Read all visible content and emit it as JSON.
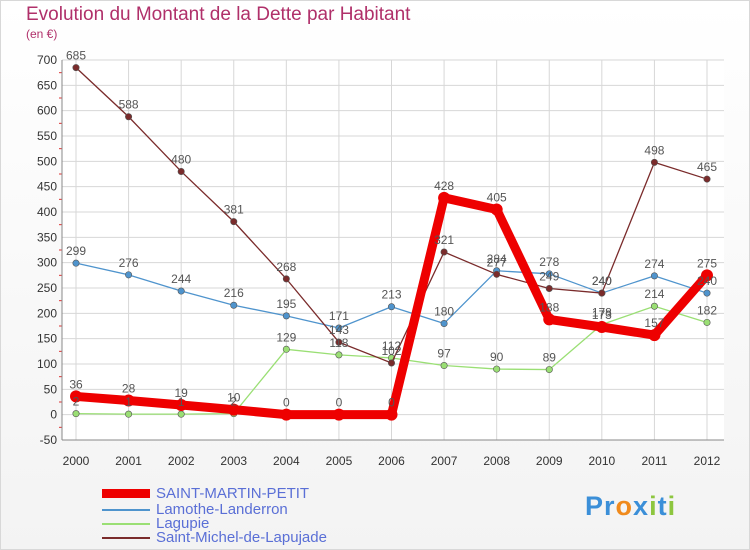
{
  "title": "Evolution du Montant de la Dette par Habitant",
  "subtitle": "(en €)",
  "logo": {
    "letters": [
      "P",
      "r",
      "o",
      "x",
      "i",
      "t",
      "i"
    ],
    "colors": [
      "#3b8fd8",
      "#3b8fd8",
      "#f08a1c",
      "#3b8fd8",
      "#8dc63f",
      "#3b8fd8",
      "#8dc63f"
    ]
  },
  "chart_data": {
    "type": "line",
    "title": "Evolution du Montant de la Dette par Habitant",
    "ylabel": "(en €)",
    "xlabel": "",
    "categories": [
      "2000",
      "2001",
      "2002",
      "2003",
      "2004",
      "2005",
      "2006",
      "2007",
      "2008",
      "2009",
      "2010",
      "2011",
      "2012"
    ],
    "ylim": [
      -50,
      700
    ],
    "yticks": [
      "-50",
      "0",
      "50",
      "100",
      "150",
      "200",
      "250",
      "300",
      "350",
      "400",
      "450",
      "500",
      "550",
      "600",
      "650",
      "700"
    ],
    "grid": true,
    "series": [
      {
        "name": "SAINT-MARTIN-PETIT",
        "color": "#ee0000",
        "emphasis": "thick",
        "values": [
          36,
          28,
          19,
          10,
          0,
          0,
          0,
          428,
          405,
          188,
          173,
          157,
          275
        ],
        "labels": [
          "36",
          "28",
          "19",
          "10",
          "0",
          "0",
          "0",
          "428",
          "405",
          "188",
          "173",
          "157",
          "275"
        ]
      },
      {
        "name": "Lamothe-Landerron",
        "color": "#4f94cd",
        "emphasis": "thin",
        "values": [
          299,
          276,
          244,
          216,
          195,
          171,
          213,
          180,
          284,
          278,
          240,
          274,
          240
        ],
        "labels": [
          "299",
          "276",
          "244",
          "216",
          "195",
          "171",
          "213",
          "180",
          "284",
          "278",
          "240",
          "274",
          "240"
        ]
      },
      {
        "name": "Lagupie",
        "color": "#9adf74",
        "emphasis": "thin",
        "values": [
          2,
          1,
          1,
          2,
          129,
          118,
          112,
          97,
          90,
          89,
          178,
          214,
          182
        ],
        "labels": [
          "2",
          "1",
          "1",
          "2",
          "129",
          "118",
          "112",
          "97",
          "90",
          "89",
          "178",
          "214",
          "182"
        ]
      },
      {
        "name": "Saint-Michel-de-Lapujade",
        "color": "#7a2b2b",
        "emphasis": "thin",
        "values": [
          685,
          588,
          480,
          381,
          268,
          143,
          102,
          321,
          277,
          249,
          240,
          498,
          465
        ],
        "labels": [
          "685",
          "588",
          "480",
          "381",
          "268",
          "143",
          "102",
          "321",
          "277",
          "249",
          "240",
          "498",
          "465"
        ]
      }
    ]
  }
}
